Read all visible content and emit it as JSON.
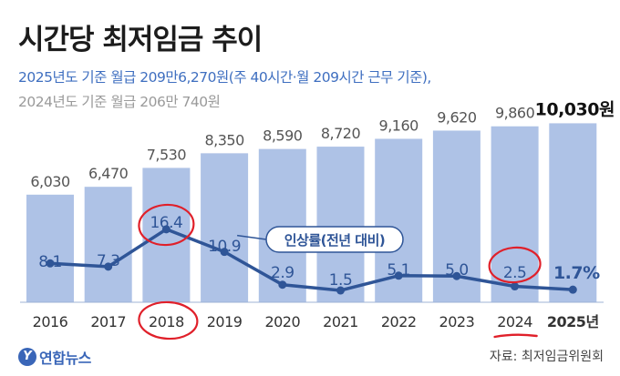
{
  "title": "시간당 최저임금 추이",
  "subtitle_lines": [
    "2025년도 기준 월급 209만6,270원(주 40시간·월 209시간 근무 기준),",
    "2024년도 기준 월급 206만 740원"
  ],
  "source": "자료: 최저임금위원회",
  "logo": {
    "mark": "Y",
    "text": "연합뉴스"
  },
  "colors": {
    "bar": "#aec2e6",
    "bar_top": "#97b1de",
    "line": "#2f5597",
    "line_label": "#2f5597",
    "annotation_circle": "#e0202a",
    "title": "#1c1c1c",
    "subtitle_highlight": "#3f6fc0",
    "subtitle_muted": "#9a9a9a"
  },
  "chart_data": {
    "type": "bar",
    "categories": [
      "2016",
      "2017",
      "2018",
      "2019",
      "2020",
      "2021",
      "2022",
      "2023",
      "2024",
      "2025년"
    ],
    "series": [
      {
        "values": [
          6030,
          6470,
          7530,
          8350,
          8590,
          8720,
          9160,
          9620,
          9860,
          10030
        ],
        "labels": [
          "6,030",
          "6,470",
          "7,530",
          "8,350",
          "8,590",
          "8,720",
          "9,160",
          "9,620",
          "9,860",
          "10,030원"
        ]
      },
      {
        "type": "line",
        "name": "인상률(전년 대비)",
        "values": [
          8.1,
          7.3,
          16.4,
          10.9,
          2.9,
          1.5,
          5.1,
          5.0,
          2.5,
          1.7
        ],
        "labels": [
          "8.1",
          "7.3",
          "16.4",
          "10.9",
          "2.9",
          "1.5",
          "5.1",
          "5.0",
          "2.5",
          "1.7%"
        ]
      }
    ],
    "annotations": [
      {
        "type": "circle",
        "target": "rate",
        "category": "2018"
      },
      {
        "type": "circle",
        "target": "category",
        "category": "2018"
      },
      {
        "type": "circle",
        "target": "rate",
        "category": "2024"
      },
      {
        "type": "underline",
        "target": "category",
        "category": "2024"
      }
    ],
    "xlabel": "",
    "ylabel": ""
  }
}
